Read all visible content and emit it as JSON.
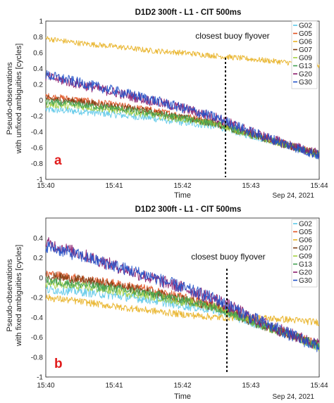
{
  "chart_data": [
    {
      "type": "line",
      "title": "D1D2 300ft - L1 - CIT 500ms",
      "xlabel": "Time",
      "ylabel": "Pseudo-observations\nwith unfixed ambiguities [cycles]",
      "date_label": "Sep 24, 2021",
      "panel_label": "a",
      "annotation": "closest buoy flyover",
      "flyover_x": "15:42:40",
      "xlim": [
        "15:40",
        "15:44"
      ],
      "ylim": [
        -1,
        1
      ],
      "x_ticks": [
        "15:40",
        "15:41",
        "15:42",
        "15:43",
        "15:44"
      ],
      "y_ticks": [
        "-1",
        "-0.8",
        "-0.6",
        "-0.4",
        "-0.2",
        "0",
        "0.2",
        "0.4",
        "0.6",
        "0.8",
        "1"
      ],
      "legend_position": "top-right",
      "x": [
        "15:40",
        "15:40:30",
        "15:41",
        "15:41:30",
        "15:42",
        "15:42:30",
        "15:43",
        "15:43:30",
        "15:44"
      ],
      "series": [
        {
          "name": "G02",
          "color": "#5cc8e8",
          "values": [
            -0.12,
            -0.14,
            -0.18,
            -0.22,
            -0.28,
            -0.33,
            -0.45,
            -0.55,
            -0.7
          ]
        },
        {
          "name": "G05",
          "color": "#e0501e",
          "values": [
            0.05,
            0.0,
            -0.06,
            -0.12,
            -0.2,
            -0.28,
            -0.42,
            -0.55,
            -0.68
          ]
        },
        {
          "name": "G06",
          "color": "#e8b020",
          "values": [
            0.78,
            0.72,
            0.68,
            0.63,
            0.6,
            0.56,
            0.52,
            0.48,
            0.44
          ]
        },
        {
          "name": "G07",
          "color": "#7a3a10",
          "values": [
            0.02,
            -0.02,
            -0.08,
            -0.14,
            -0.22,
            -0.3,
            -0.44,
            -0.56,
            -0.68
          ]
        },
        {
          "name": "G09",
          "color": "#a4d040",
          "values": [
            -0.05,
            -0.08,
            -0.12,
            -0.18,
            -0.24,
            -0.3,
            -0.44,
            -0.56,
            -0.7
          ]
        },
        {
          "name": "G13",
          "color": "#40a050",
          "values": [
            -0.02,
            -0.06,
            -0.1,
            -0.16,
            -0.22,
            -0.3,
            -0.44,
            -0.56,
            -0.68
          ]
        },
        {
          "name": "G20",
          "color": "#8a1a6a",
          "values": [
            0.3,
            0.2,
            0.1,
            0.0,
            -0.1,
            -0.22,
            -0.4,
            -0.55,
            -0.68
          ]
        },
        {
          "name": "G30",
          "color": "#2050c8",
          "values": [
            0.32,
            0.22,
            0.12,
            0.02,
            -0.1,
            -0.22,
            -0.4,
            -0.55,
            -0.7
          ]
        }
      ]
    },
    {
      "type": "line",
      "title": "D1D2 300ft - L1 - CIT 500ms",
      "xlabel": "Time",
      "ylabel": "Pseudo-observations\nwith fixed ambiguities [cycles]",
      "date_label": "Sep 24, 2021",
      "panel_label": "b",
      "annotation": "closest buoy flyover",
      "flyover_x": "15:42:40",
      "xlim": [
        "15:40",
        "15:44"
      ],
      "ylim": [
        -1,
        0.6
      ],
      "x_ticks": [
        "15:40",
        "15:41",
        "15:42",
        "15:43",
        "15:44"
      ],
      "y_ticks": [
        "-1",
        "-0.8",
        "-0.6",
        "-0.4",
        "-0.2",
        "0",
        "0.2",
        "0.4"
      ],
      "legend_position": "top-right",
      "x": [
        "15:40",
        "15:40:30",
        "15:41",
        "15:41:30",
        "15:42",
        "15:42:30",
        "15:43",
        "15:43:30",
        "15:44"
      ],
      "series": [
        {
          "name": "G02",
          "color": "#5cc8e8",
          "values": [
            -0.12,
            -0.14,
            -0.18,
            -0.22,
            -0.28,
            -0.33,
            -0.45,
            -0.55,
            -0.7
          ]
        },
        {
          "name": "G05",
          "color": "#e0501e",
          "values": [
            0.04,
            -0.01,
            -0.06,
            -0.12,
            -0.2,
            -0.28,
            -0.42,
            -0.55,
            -0.68
          ]
        },
        {
          "name": "G06",
          "color": "#e8b020",
          "values": [
            -0.2,
            -0.24,
            -0.29,
            -0.33,
            -0.37,
            -0.4,
            -0.4,
            -0.42,
            -0.45
          ]
        },
        {
          "name": "G07",
          "color": "#7a3a10",
          "values": [
            0.02,
            -0.02,
            -0.08,
            -0.14,
            -0.22,
            -0.3,
            -0.44,
            -0.56,
            -0.68
          ]
        },
        {
          "name": "G09",
          "color": "#a4d040",
          "values": [
            -0.06,
            -0.09,
            -0.13,
            -0.18,
            -0.24,
            -0.3,
            -0.44,
            -0.56,
            -0.7
          ]
        },
        {
          "name": "G13",
          "color": "#40a050",
          "values": [
            -0.03,
            -0.07,
            -0.11,
            -0.16,
            -0.22,
            -0.3,
            -0.44,
            -0.56,
            -0.68
          ]
        },
        {
          "name": "G20",
          "color": "#8a1a6a",
          "values": [
            0.35,
            0.24,
            0.12,
            0.0,
            -0.1,
            -0.22,
            -0.4,
            -0.55,
            -0.68
          ]
        },
        {
          "name": "G30",
          "color": "#2050c8",
          "values": [
            0.32,
            0.22,
            0.12,
            0.02,
            -0.1,
            -0.22,
            -0.4,
            -0.55,
            -0.7
          ]
        }
      ]
    }
  ]
}
